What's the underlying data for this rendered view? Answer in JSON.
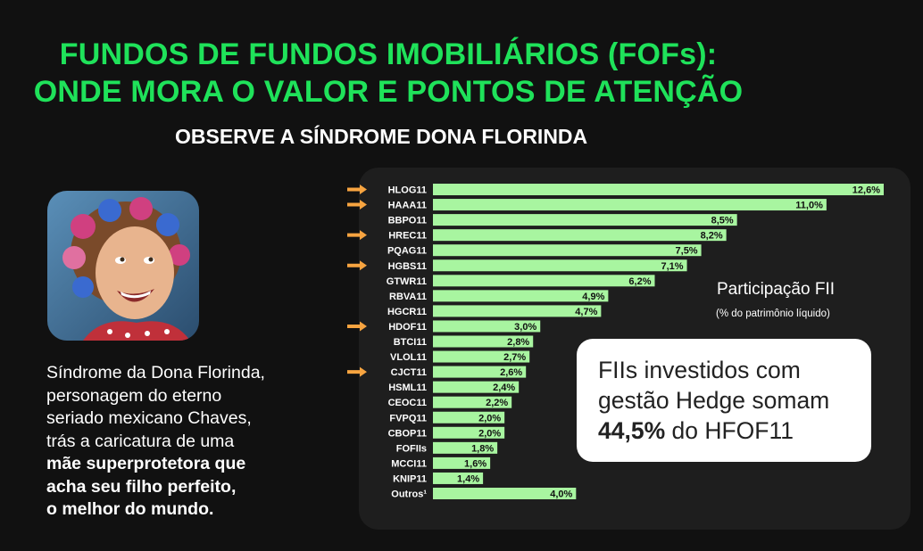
{
  "title": {
    "line1": "FUNDOS DE FUNDOS IMOBILIÁRIOS (FOFs):",
    "line2": "ONDE MORA O VALOR E PONTOS DE ATENÇÃO"
  },
  "subtitle": "OBSERVE A SÍNDROME DONA FLORINDA",
  "caption": {
    "lines": [
      "Síndrome da Dona Florinda,",
      "personagem do eterno",
      "seriado mexicano Chaves,",
      "trás a caricatura de uma"
    ],
    "bold_lines": [
      "mãe superprotetora que",
      "acha seu filho perfeito,",
      "o melhor do mundo."
    ]
  },
  "legend": {
    "title": "Participação FII",
    "subtitle": "(% do patrimônio líquido)"
  },
  "callout": {
    "line1": "FIIs investidos com",
    "line2": "gestão Hedge somam",
    "value": "44,5%",
    "line3_rest": " do HFOF11"
  },
  "colors": {
    "title": "#1fe25a",
    "bar": "#a8f5a0",
    "arrow": "#f7a440",
    "background": "#111111",
    "panel": "#1e1e1e"
  },
  "chart_data": {
    "type": "bar",
    "orientation": "horizontal",
    "categories": [
      "HLOG11",
      "HAAA11",
      "BBPO11",
      "HREC11",
      "PQAG11",
      "HGBS11",
      "GTWR11",
      "RBVA11",
      "HGCR11",
      "HDOF11",
      "BTCI11",
      "VLOL11",
      "CJCT11",
      "HSML11",
      "CEOC11",
      "FVPQ11",
      "CBOP11",
      "FOFIIs",
      "MCCI11",
      "KNIP11",
      "Outros¹"
    ],
    "values": [
      12.6,
      11.0,
      8.5,
      8.2,
      7.5,
      7.1,
      6.2,
      4.9,
      4.7,
      3.0,
      2.8,
      2.7,
      2.6,
      2.4,
      2.2,
      2.0,
      2.0,
      1.8,
      1.6,
      1.4,
      4.0
    ],
    "labels": [
      "12,6%",
      "11,0%",
      "8,5%",
      "8,2%",
      "7,5%",
      "7,1%",
      "6,2%",
      "4,9%",
      "4,7%",
      "3,0%",
      "2,8%",
      "2,7%",
      "2,6%",
      "2,4%",
      "2,2%",
      "2,0%",
      "2,0%",
      "1,8%",
      "1,6%",
      "1,4%",
      "4,0%"
    ],
    "highlighted": [
      "HLOG11",
      "HAAA11",
      "HREC11",
      "HGBS11",
      "HDOF11",
      "CJCT11"
    ],
    "highlight_marker": "arrow-icon",
    "xlim": [
      0,
      12.6
    ],
    "grid": false
  }
}
